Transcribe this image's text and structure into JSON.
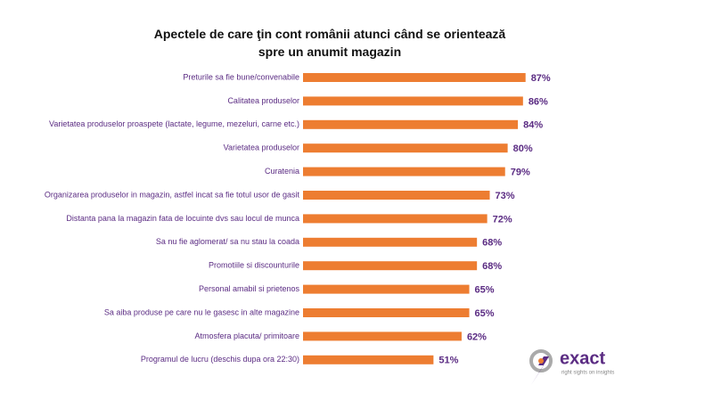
{
  "chart_data": {
    "type": "barh",
    "title": "Apectele de care ţin cont românii atunci când se orientează spre un anumit magazin",
    "categories": [
      "Preturile sa fie bune/convenabile",
      "Calitatea produselor",
      "Varietatea produselor proaspete (lactate, legume, mezeluri, carne etc.)",
      "Varietatea produselor",
      "Curatenia",
      "Organizarea produselor in magazin, astfel incat sa fie totul usor de gasit",
      "Distanta pana la magazin fata de locuinte dvs sau locul de munca",
      "Sa nu fie aglomerat/ sa nu stau la coada",
      "Promotiile si discounturile",
      "Personal amabil si prietenos",
      "Sa aiba produse pe care nu le gasesc in alte magazine",
      "Atmosfera placuta/ primitoare",
      "Programul de lucru (deschis dupa ora 22:30)"
    ],
    "values": [
      87,
      86,
      84,
      80,
      79,
      73,
      72,
      68,
      68,
      65,
      65,
      62,
      51
    ],
    "value_labels": [
      "87%",
      "86%",
      "84%",
      "80%",
      "79%",
      "73%",
      "72%",
      "68%",
      "68%",
      "65%",
      "65%",
      "62%",
      "51%"
    ],
    "color": "#ed7d31",
    "xlim": [
      0,
      100
    ]
  },
  "logo": {
    "name": "exact",
    "tagline": "right sights on insights"
  }
}
